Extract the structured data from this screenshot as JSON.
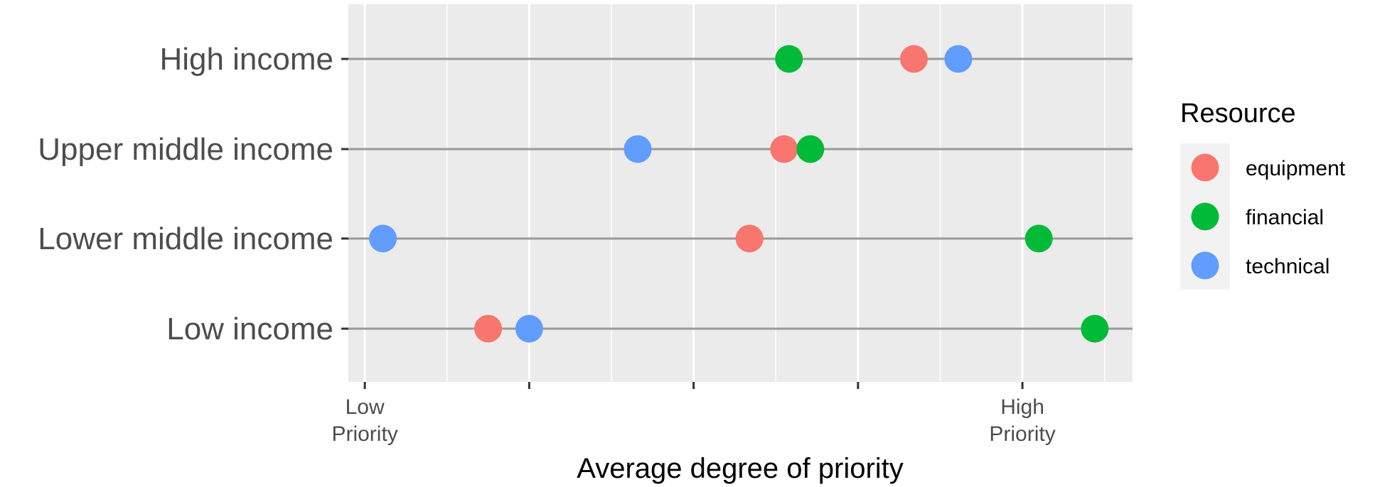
{
  "chart_data": {
    "type": "scatter",
    "subtype": "dot-plot",
    "title": "",
    "xlabel": "Average degree of priority",
    "ylabel": "",
    "x_tick_labels": [
      {
        "value": 1,
        "lines": [
          "Low",
          "Priority"
        ]
      },
      {
        "value": 5,
        "lines": [
          "High",
          "Priority"
        ]
      }
    ],
    "x_ticks": [
      1,
      2,
      3,
      4,
      5
    ],
    "xlim": [
      0.9,
      5.67
    ],
    "categories": [
      "High income",
      "Upper middle income",
      "Lower middle income",
      "Low income"
    ],
    "series": [
      {
        "name": "equipment",
        "color": "#F8766D",
        "values": [
          4.34,
          3.55,
          3.34,
          1.75
        ]
      },
      {
        "name": "financial",
        "color": "#00BA38",
        "values": [
          3.58,
          3.71,
          5.1,
          5.44
        ]
      },
      {
        "name": "technical",
        "color": "#619CFF",
        "values": [
          4.61,
          2.66,
          1.11,
          2.0
        ]
      }
    ],
    "legend": {
      "title": "Resource",
      "position": "right"
    },
    "grid": true,
    "panel_background": "#EBEBEB",
    "segment_color": "#999999"
  }
}
